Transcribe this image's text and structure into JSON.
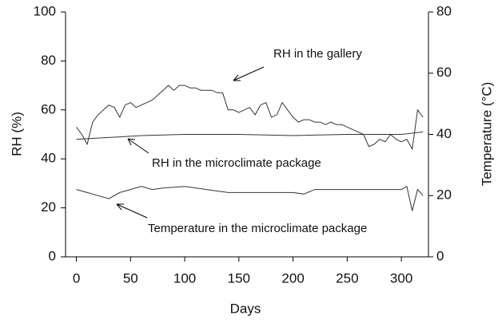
{
  "chart_data": {
    "type": "line",
    "xlabel": "Days",
    "ylabel": "RH (%)",
    "y2label": "Temperature (°C)",
    "xlim": [
      -10,
      325
    ],
    "xticks": [
      0,
      50,
      100,
      150,
      200,
      250,
      300
    ],
    "ylim": [
      0,
      100
    ],
    "yticks": [
      0,
      20,
      40,
      60,
      80,
      100
    ],
    "y2lim": [
      0,
      80
    ],
    "y2ticks": [
      0,
      20,
      40,
      60,
      80
    ],
    "grid": false,
    "annotations": [
      "RH in the gallery",
      "RH in the microclimate package",
      "Temperature in the microclimate package"
    ],
    "series": [
      {
        "color": "#333333",
        "x": [
          0,
          5,
          10,
          15,
          20,
          25,
          30,
          35,
          40,
          45,
          50,
          55,
          60,
          65,
          70,
          75,
          80,
          85,
          90,
          95,
          100,
          105,
          110,
          115,
          120,
          125,
          130,
          135,
          140,
          145,
          150,
          155,
          160,
          165,
          170,
          175,
          180,
          185,
          190,
          195,
          200,
          205,
          210,
          215,
          220,
          225,
          230,
          235,
          240,
          245,
          250,
          255,
          260,
          265,
          270,
          275,
          280,
          285,
          290,
          295,
          300,
          305,
          310,
          315,
          320
        ],
        "values": [
          53,
          50,
          46,
          55,
          58,
          60,
          62,
          61,
          57,
          62,
          63,
          61,
          62,
          63,
          64,
          66,
          68,
          70,
          68,
          70,
          70,
          69,
          69,
          68,
          68,
          68,
          67,
          67,
          60,
          60,
          59,
          60,
          61,
          58,
          62,
          63,
          57,
          58,
          63,
          60,
          57,
          55,
          56,
          56,
          55,
          55,
          54,
          55,
          54,
          54,
          53,
          52,
          51,
          50,
          45,
          46,
          48,
          47,
          50,
          48,
          47,
          48,
          44,
          60,
          57
        ]
      },
      {
        "color": "#333333",
        "x": [
          0,
          20,
          40,
          60,
          100,
          150,
          200,
          250,
          300,
          320
        ],
        "values": [
          48,
          48.5,
          49,
          49.5,
          50,
          50,
          49.5,
          50,
          50,
          51
        ]
      },
      {
        "color": "#333333",
        "axis": "y2",
        "x": [
          0,
          10,
          20,
          30,
          40,
          50,
          60,
          70,
          80,
          100,
          120,
          140,
          160,
          180,
          200,
          210,
          220,
          250,
          280,
          300,
          305,
          310,
          315,
          320
        ],
        "values": [
          22,
          21,
          20,
          19,
          21,
          22,
          23,
          22,
          22.5,
          23,
          22,
          21,
          21,
          21,
          21,
          20.5,
          22,
          22,
          22,
          22,
          23,
          15,
          22,
          20
        ]
      }
    ]
  }
}
